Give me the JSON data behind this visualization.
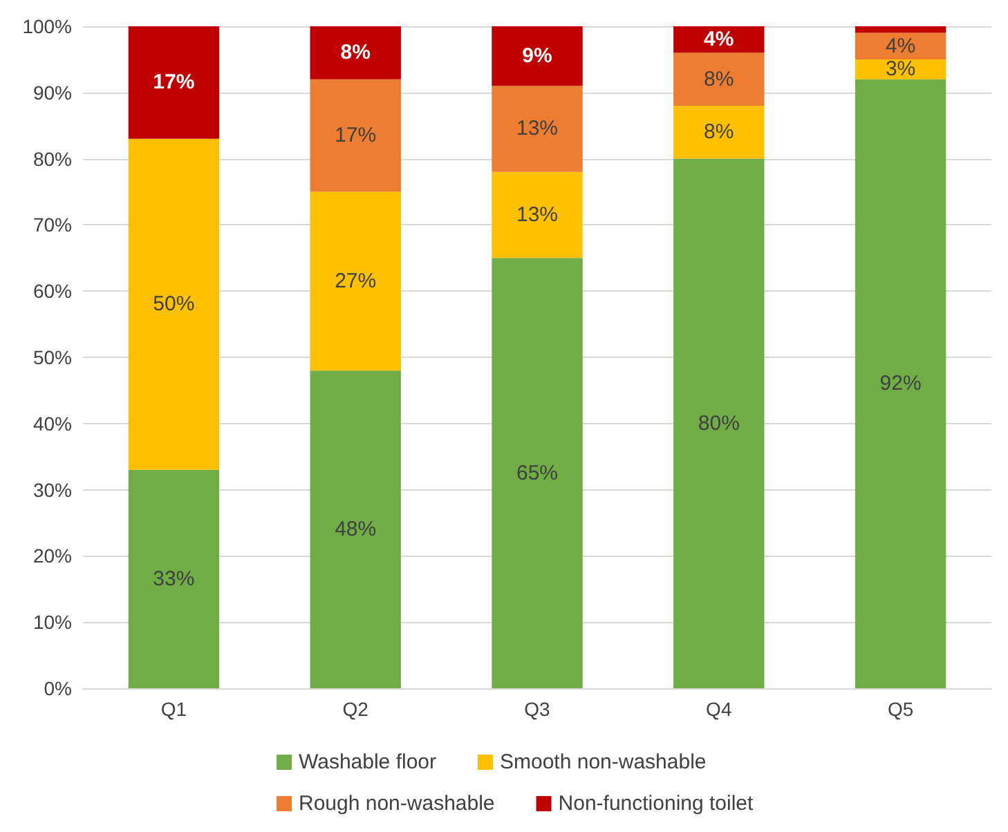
{
  "chart_data": {
    "type": "bar",
    "stacked": true,
    "categories": [
      "Q1",
      "Q2",
      "Q3",
      "Q4",
      "Q5"
    ],
    "series": [
      {
        "name": "Washable floor",
        "color": "#70ad47",
        "values": [
          33,
          48,
          65,
          80,
          92
        ],
        "value_labels": [
          "33%",
          "48%",
          "65%",
          "80%",
          "92%"
        ]
      },
      {
        "name": "Smooth non-washable",
        "color": "#ffc000",
        "values": [
          50,
          27,
          13,
          8,
          3
        ],
        "value_labels": [
          "50%",
          "27%",
          "13%",
          "8%",
          "3%"
        ]
      },
      {
        "name": "Rough non-washable",
        "color": "#ed7d31",
        "values": [
          0,
          17,
          13,
          8,
          4
        ],
        "value_labels": [
          null,
          "17%",
          "13%",
          "8%",
          "4%"
        ]
      },
      {
        "name": "Non-functioning toilet",
        "color": "#c00000",
        "values": [
          17,
          8,
          9,
          4,
          1
        ],
        "value_labels": [
          "17%",
          "8%",
          "9%",
          "4%",
          null
        ]
      }
    ],
    "ylim": [
      0,
      100
    ],
    "yticks": [
      {
        "value": 0,
        "label": "0%"
      },
      {
        "value": 10,
        "label": "10%"
      },
      {
        "value": 20,
        "label": "20%"
      },
      {
        "value": 30,
        "label": "30%"
      },
      {
        "value": 40,
        "label": "40%"
      },
      {
        "value": 50,
        "label": "50%"
      },
      {
        "value": 60,
        "label": "60%"
      },
      {
        "value": 70,
        "label": "70%"
      },
      {
        "value": 80,
        "label": "80%"
      },
      {
        "value": 90,
        "label": "90%"
      },
      {
        "value": 100,
        "label": "100%"
      }
    ],
    "grid": "y",
    "legend": "bottom"
  }
}
